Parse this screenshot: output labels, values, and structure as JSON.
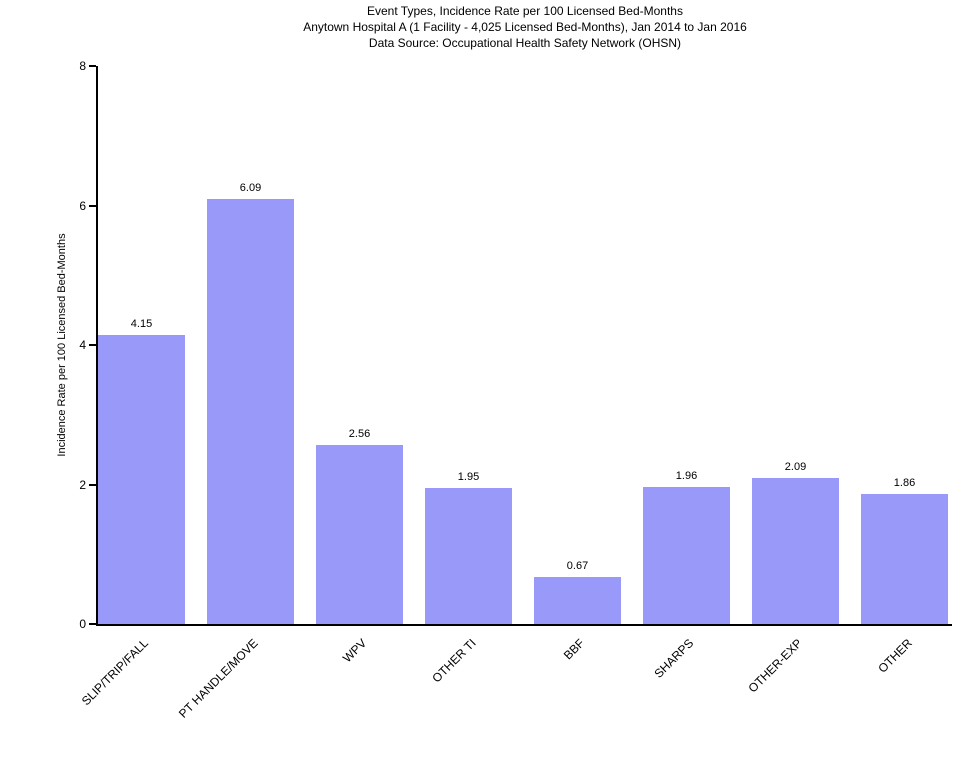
{
  "title": {
    "line1": "Event Types, Incidence Rate per 100 Licensed Bed-Months",
    "line2": "Anytown Hospital A (1 Facility - 4,025 Licensed Bed-Months), Jan 2014 to Jan 2016",
    "line3": "Data Source: Occupational Health Safety Network (OHSN)"
  },
  "chart_data": {
    "type": "bar",
    "title": "Event Types, Incidence Rate per 100 Licensed Bed-Months",
    "subtitle": "Anytown Hospital A (1 Facility - 4,025 Licensed Bed-Months), Jan 2014 to Jan 2016",
    "data_source_note": "Data Source: Occupational Health Safety Network (OHSN)",
    "categories": [
      "SLIP/TRIP/FALL",
      "PT HANDLE/MOVE",
      "WPV",
      "OTHER TI",
      "BBF",
      "SHARPS",
      "OTHER-EXP",
      "OTHER"
    ],
    "values": [
      4.15,
      6.09,
      2.56,
      1.95,
      0.67,
      1.96,
      2.09,
      1.86
    ],
    "value_labels": [
      "4.15",
      "6.09",
      "2.56",
      "1.95",
      "0.67",
      "1.96",
      "2.09",
      "1.86"
    ],
    "xlabel": "",
    "ylabel": "Incidence Rate per 100 Licensed Bed-Months",
    "ylim": [
      0,
      8
    ],
    "yticks": [
      0,
      2,
      4,
      6,
      8
    ],
    "bar_color": "#9999FA",
    "axis_color": "#000000",
    "grid": false,
    "legend": false,
    "x_label_rotation_deg": 45
  }
}
